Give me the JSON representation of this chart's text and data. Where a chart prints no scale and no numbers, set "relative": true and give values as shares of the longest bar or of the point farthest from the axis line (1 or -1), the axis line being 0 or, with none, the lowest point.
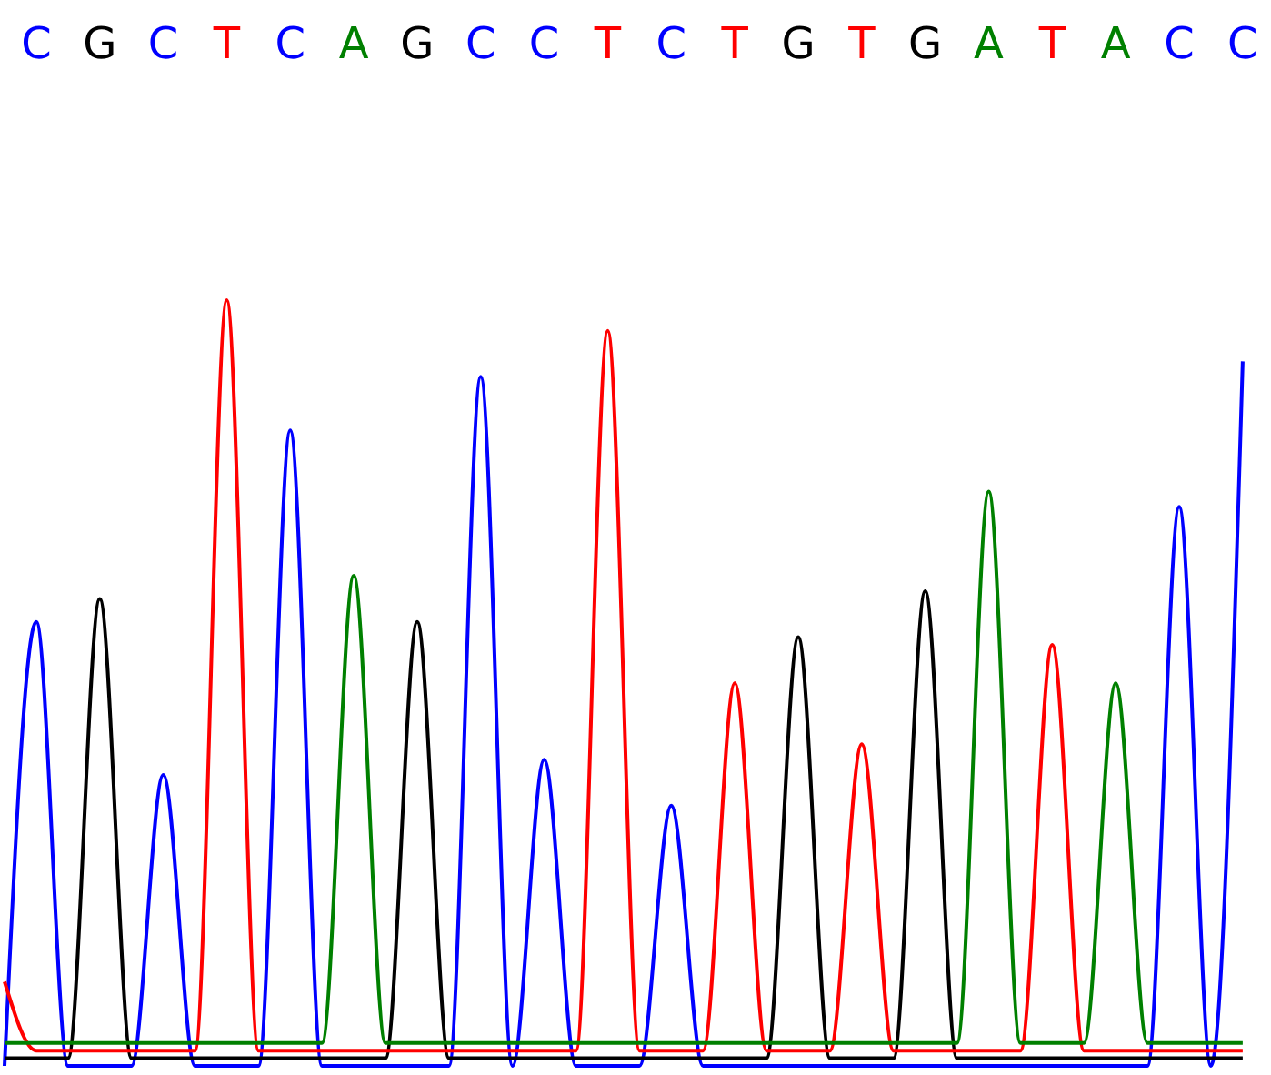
{
  "chart_data": {
    "type": "line",
    "relative": true,
    "categories": [
      null,
      null,
      null,
      null,
      null,
      null,
      null,
      null,
      null,
      null,
      null,
      null,
      null,
      null,
      null,
      null,
      null,
      null,
      null,
      null,
      null,
      null,
      null,
      null,
      null,
      null,
      null,
      null,
      null,
      null,
      null,
      null,
      null,
      null,
      null,
      null,
      null,
      null,
      null,
      null
    ],
    "annotations": [
      "C",
      "G",
      "C",
      "T",
      "C",
      "A",
      "G",
      "C",
      "C",
      "T",
      "C",
      "T",
      "G",
      "T",
      "G",
      "A",
      "T",
      "A",
      "C",
      "C"
    ],
    "series": [
      {
        "color": "#0000ff",
        "values": [
          0,
          0.58,
          0,
          0,
          0,
          0.38,
          0,
          0,
          0,
          0.83,
          0,
          0,
          0,
          0,
          0,
          0.9,
          0,
          0.4,
          0,
          0,
          0,
          0.34,
          0,
          0,
          0,
          0,
          0,
          0,
          0,
          0,
          0,
          0,
          0,
          0,
          0,
          0,
          0,
          0.73,
          0,
          0.92
        ]
      },
      {
        "color": "#000000",
        "values": [
          0.01,
          0.01,
          0.01,
          0.61,
          0.01,
          0.01,
          0.01,
          0.01,
          0.01,
          0.01,
          0.01,
          0.01,
          0.01,
          0.58,
          0.01,
          0.01,
          0.01,
          0.01,
          0.01,
          0.01,
          0.01,
          0.01,
          0.01,
          0.01,
          0.01,
          0.56,
          0.01,
          0.01,
          0.01,
          0.62,
          0.01,
          0.01,
          0.01,
          0.01,
          0.01,
          0.01,
          0.01,
          0.01,
          0.01,
          0.01
        ]
      },
      {
        "color": "#ff0000",
        "values": [
          0.11,
          0.02,
          0.02,
          0.02,
          0.02,
          0.02,
          0.02,
          1.0,
          0.02,
          0.02,
          0.02,
          0.02,
          0.02,
          0.02,
          0.02,
          0.02,
          0.02,
          0.02,
          0.02,
          0.96,
          0.02,
          0.02,
          0.02,
          0.5,
          0.02,
          0.02,
          0.02,
          0.42,
          0.02,
          0.02,
          0.02,
          0.02,
          0.02,
          0.55,
          0.02,
          0.02,
          0.02,
          0.02,
          0.02,
          0.02
        ]
      },
      {
        "color": "#008000",
        "values": [
          0.03,
          0.03,
          0.03,
          0.03,
          0.03,
          0.03,
          0.03,
          0.03,
          0.03,
          0.03,
          0.03,
          0.64,
          0.03,
          0.03,
          0.03,
          0.03,
          0.03,
          0.03,
          0.03,
          0.03,
          0.03,
          0.03,
          0.03,
          0.03,
          0.03,
          0.03,
          0.03,
          0.03,
          0.03,
          0.03,
          0.03,
          0.75,
          0.03,
          0.03,
          0.03,
          0.5,
          0.03,
          0.03,
          0.03,
          0.03
        ]
      }
    ]
  }
}
